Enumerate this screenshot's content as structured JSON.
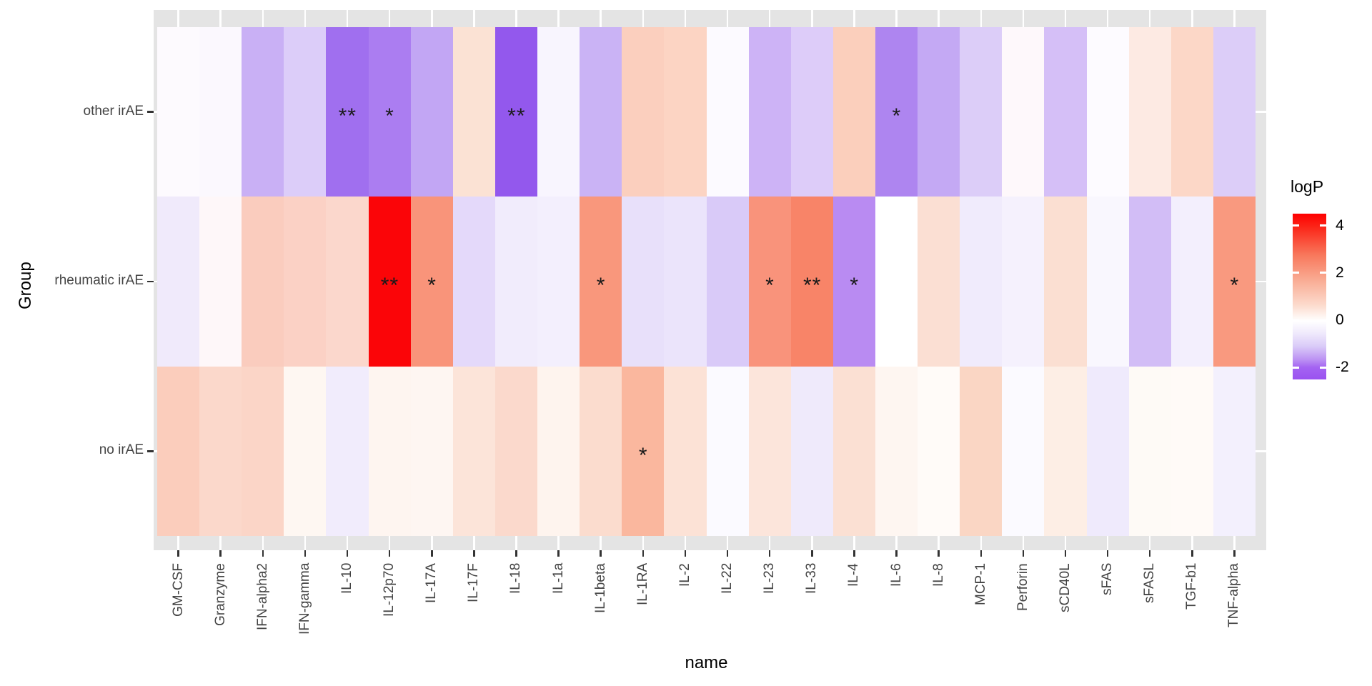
{
  "colors": {
    "page_bg": "#FFFFFF",
    "panel_bg": "#E4E4E4",
    "gridline": "#FFFFFF",
    "tick": "#333333",
    "axis_text": "#444444",
    "axis_title": "#000000",
    "annotation": "#1A1A1A",
    "legend_red": "#FE0000",
    "legend_white": "#FFFFFF",
    "legend_purple": "#9A52F0"
  },
  "chart_data": {
    "type": "heatmap",
    "xlabel": "name",
    "ylabel": "Group",
    "grid": true,
    "x_categories": [
      "GM-CSF",
      "Granzyme",
      "IFN-alpha2",
      "IFN-gamma",
      "IL-10",
      "IL-12p70",
      "IL-17A",
      "IL-17F",
      "IL-18",
      "IL-1a",
      "IL-1beta",
      "IL-1RA",
      "IL-2",
      "IL-22",
      "IL-23",
      "IL-33",
      "IL-4",
      "IL-6",
      "IL-8",
      "MCP-1",
      "Perforin",
      "sCD40L",
      "sFAS",
      "sFASL",
      "TGF-b1",
      "TNF-alpha"
    ],
    "y_categories": [
      "other irAE",
      "rheumatic irAE",
      "no irAE"
    ],
    "series": [
      {
        "name": "other irAE",
        "values": [
          -0.05,
          -0.1,
          -1.1,
          -0.7,
          -2.0,
          -1.8,
          -1.3,
          0.6,
          -2.4,
          -0.15,
          -1.1,
          1.0,
          0.9,
          -0.1,
          -1.1,
          -0.7,
          1.0,
          -1.7,
          -1.2,
          -0.75,
          0.1,
          -1.0,
          -0.05,
          0.4,
          0.9,
          -0.7
        ],
        "colors": [
          "#FDFAFE",
          "#FBF8FE",
          "#C9B0F5",
          "#DCCDF9",
          "#A06FEF",
          "#AB7DF1",
          "#C2A6F4",
          "#FBE2D4",
          "#9358ED",
          "#F8F5FE",
          "#CAB3F5",
          "#FBCFBE",
          "#FCD4C3",
          "#FCFAFF",
          "#CDB3F6",
          "#DDCCF9",
          "#FBCFBC",
          "#AE85F0",
          "#C4A9F4",
          "#DCCDF8",
          "#FEF8FB",
          "#D5BFF7",
          "#FDFBFF",
          "#FDEAE3",
          "#FCD7C7",
          "#DCCDF8"
        ],
        "significance": [
          "",
          "",
          "",
          "",
          "**",
          "*",
          "",
          "",
          "**",
          "",
          "",
          "",
          "",
          "",
          "",
          "",
          "",
          "*",
          "",
          "",
          "",
          "",
          "",
          "",
          "",
          ""
        ]
      },
      {
        "name": "rheumatic irAE",
        "values": [
          -0.3,
          0.15,
          1.05,
          0.95,
          0.8,
          4.4,
          2.0,
          -0.55,
          -0.3,
          -0.25,
          1.95,
          -0.45,
          -0.4,
          -0.75,
          2.0,
          2.3,
          -1.55,
          0.0,
          0.65,
          -0.3,
          -0.2,
          0.65,
          -0.1,
          -1.0,
          -0.25,
          1.9
        ],
        "colors": [
          "#F0EAFB",
          "#FEF7F9",
          "#FACCBE",
          "#FBD1C5",
          "#FBD7CC",
          "#FB0508",
          "#F9947A",
          "#E4D9FA",
          "#F1ECFC",
          "#F3EFFD",
          "#F9977C",
          "#E8E0FA",
          "#EBE4FB",
          "#D9CAF8",
          "#F9937B",
          "#F88468",
          "#B98BF2",
          "#FFFFFF",
          "#FBDFD3",
          "#F0EBFC",
          "#F5F1FD",
          "#FBDFD2",
          "#F9F7FE",
          "#D2BDF6",
          "#F3EFFD",
          "#F9997F"
        ],
        "significance": [
          "",
          "",
          "",
          "",
          "",
          "**",
          "*",
          "",
          "",
          "",
          "*",
          "",
          "",
          "",
          "*",
          "**",
          "*",
          "",
          "",
          "",
          "",
          "",
          "",
          "",
          "",
          "*"
        ]
      },
      {
        "name": "no irAE",
        "values": [
          1.05,
          0.8,
          0.85,
          0.15,
          -0.3,
          0.2,
          0.2,
          0.55,
          0.8,
          0.2,
          0.7,
          1.5,
          0.6,
          -0.08,
          0.5,
          -0.3,
          0.6,
          0.2,
          0.08,
          0.85,
          -0.08,
          0.35,
          -0.3,
          0.1,
          0.1,
          -0.25
        ],
        "colors": [
          "#FBCDBC",
          "#FBD8CB",
          "#FBD5C7",
          "#FEF7F2",
          "#F1ECFC",
          "#FEF5F0",
          "#FEF6F2",
          "#FCE4D9",
          "#FBD9CC",
          "#FEF4EE",
          "#FBDCCE",
          "#FAB79E",
          "#FCE2D6",
          "#FBFAFF",
          "#FCE5DB",
          "#EFEAFB",
          "#FBE0D3",
          "#FEF6F1",
          "#FFFBF8",
          "#FAD6C4",
          "#FBFAFF",
          "#FDEEE5",
          "#EFEAFC",
          "#FEFAF6",
          "#FFFAF7",
          "#F3F0FD"
        ],
        "significance": [
          "",
          "",
          "",
          "",
          "",
          "",
          "",
          "",
          "",
          "",
          "",
          "*",
          "",
          "",
          "",
          "",
          "",
          "",
          "",
          "",
          "",
          "",
          "",
          "",
          "",
          ""
        ]
      }
    ],
    "legend": {
      "title": "logP",
      "ticks": [
        4,
        2,
        0,
        -2
      ],
      "value_range": [
        4.5,
        -2.5
      ],
      "gradient": [
        {
          "pos": 0,
          "color": "#FE0000"
        },
        {
          "pos": 8,
          "color": "#FB2518"
        },
        {
          "pos": 25,
          "color": "#F8785C"
        },
        {
          "pos": 40,
          "color": "#F9AB93"
        },
        {
          "pos": 55,
          "color": "#FCDACC"
        },
        {
          "pos": 64.7,
          "color": "#FFFFFF"
        },
        {
          "pos": 72,
          "color": "#F0EAFC"
        },
        {
          "pos": 80,
          "color": "#DACBF8"
        },
        {
          "pos": 88,
          "color": "#BC92F3"
        },
        {
          "pos": 92.7,
          "color": "#A464F2"
        },
        {
          "pos": 100,
          "color": "#9A52F0"
        }
      ]
    }
  }
}
